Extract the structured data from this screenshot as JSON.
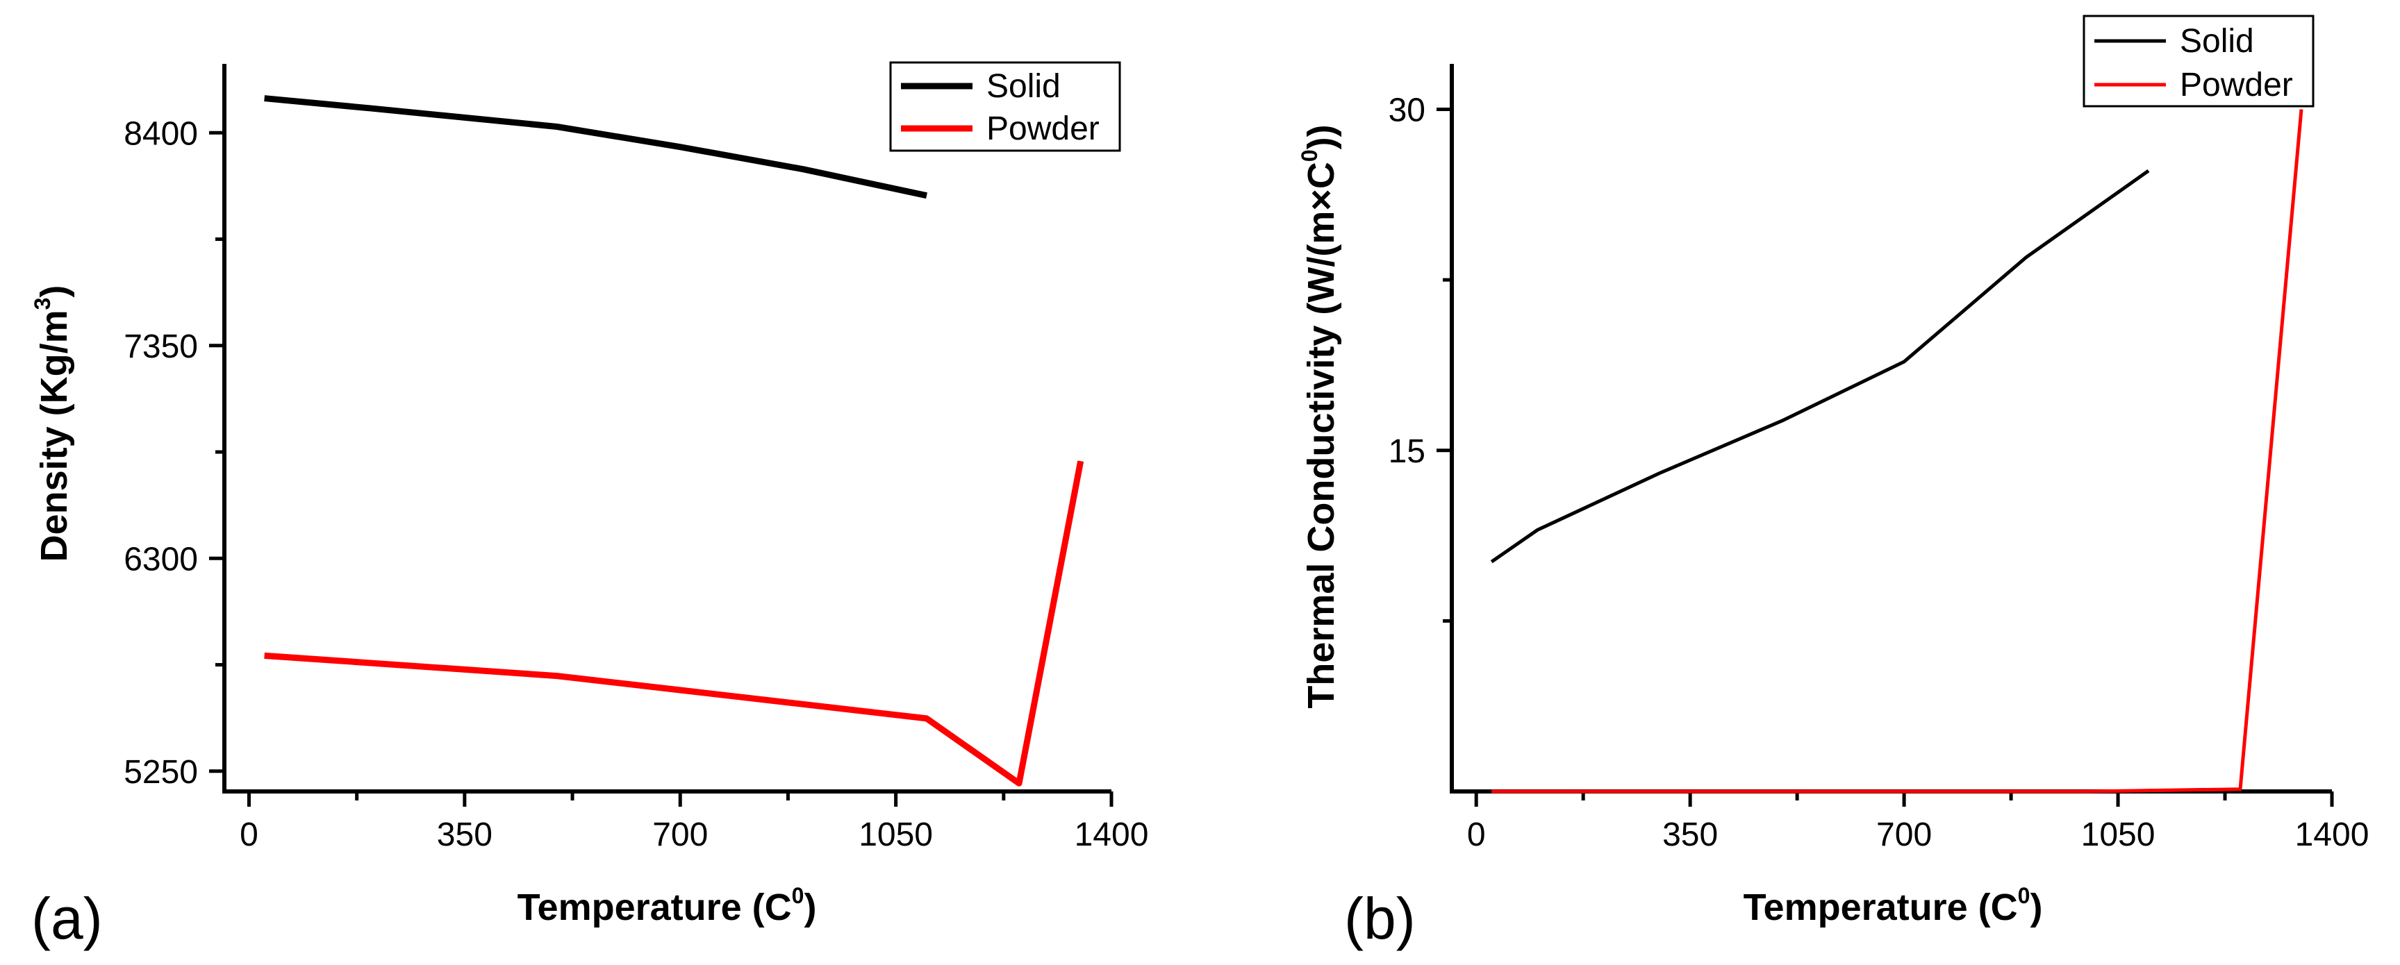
{
  "chart_data": [
    {
      "type": "line",
      "panel_label": "(a)",
      "xlabel": "Temperature (C",
      "xlabel_sup": "0",
      "xlabel_end": ")",
      "ylabel": "Density (Kg/m",
      "ylabel_sup": "3",
      "ylabel_end": ")",
      "xlim": [
        -40,
        1400
      ],
      "ylim": [
        5150,
        8740
      ],
      "xticks": [
        0,
        350,
        700,
        1050,
        1400
      ],
      "xtick_labels": [
        "0",
        "350",
        "700",
        "1050",
        "1400"
      ],
      "yticks": [
        5250,
        6300,
        7350,
        8400
      ],
      "ytick_labels": [
        "5250",
        "6300",
        "7350",
        "8400"
      ],
      "legend_position": "top-right",
      "series": [
        {
          "name": "Solid",
          "color": "#000000",
          "x": [
            25,
            200,
            500,
            700,
            900,
            1100
          ],
          "y": [
            8570,
            8520,
            8430,
            8330,
            8220,
            8090
          ]
        },
        {
          "name": "Powder",
          "color": "#ff0000",
          "x": [
            25,
            500,
            700,
            1100,
            1250,
            1350
          ],
          "y": [
            5820,
            5720,
            5650,
            5510,
            5190,
            6780
          ]
        }
      ]
    },
    {
      "type": "line",
      "panel_label": "(b)",
      "xlabel": "Temperature (C",
      "xlabel_sup": "0",
      "xlabel_end": ")",
      "ylabel": "Thermal Conductivity (W/(m×C",
      "ylabel_sup": "0",
      "ylabel_end": "))",
      "xlim": [
        -40,
        1400
      ],
      "ylim": [
        0,
        32
      ],
      "xticks": [
        0,
        350,
        700,
        1050,
        1400
      ],
      "xtick_labels": [
        "0",
        "350",
        "700",
        "1050",
        "1400"
      ],
      "yticks": [
        15,
        30
      ],
      "ytick_labels": [
        "15",
        "30"
      ],
      "legend_position": "top-right",
      "series": [
        {
          "name": "Solid",
          "color": "#000000",
          "x": [
            25,
            100,
            300,
            500,
            700,
            900,
            1100
          ],
          "y": [
            10.1,
            11.5,
            14.0,
            16.3,
            18.9,
            23.5,
            27.3
          ]
        },
        {
          "name": "Powder",
          "color": "#ff0000",
          "x": [
            25,
            1000,
            1250,
            1350
          ],
          "y": [
            0,
            0,
            0.1,
            30
          ]
        }
      ]
    }
  ]
}
